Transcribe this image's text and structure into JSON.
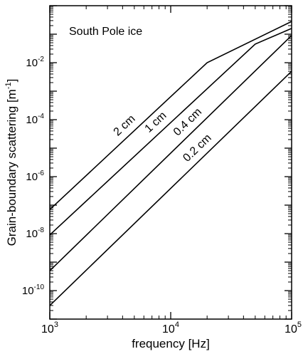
{
  "chart_data": {
    "type": "line",
    "title": "South Pole ice",
    "xlabel": "frequency [Hz]",
    "ylabel": "Grain-boundary scattering [m",
    "ylabel_sup": "-1",
    "ylabel_end": "]",
    "x_scale": "log",
    "y_scale": "log",
    "xlim": [
      1000,
      100000
    ],
    "ylim": [
      1e-11,
      1
    ],
    "x_ticks": [
      {
        "value": 1000,
        "base": "10",
        "exp": "3"
      },
      {
        "value": 10000,
        "base": "10",
        "exp": "4"
      },
      {
        "value": 100000,
        "base": "10",
        "exp": "5"
      }
    ],
    "y_ticks": [
      {
        "value": 1e-10,
        "base": "10",
        "exp": "-10"
      },
      {
        "value": 1e-08,
        "base": "10",
        "exp": "-8"
      },
      {
        "value": 1e-06,
        "base": "10",
        "exp": "-6"
      },
      {
        "value": 0.0001,
        "base": "10",
        "exp": "-4"
      },
      {
        "value": 0.01,
        "base": "10",
        "exp": "-2"
      }
    ],
    "grid": false,
    "legend": "none",
    "series": [
      {
        "name": "2 cm",
        "points": [
          [
            1000,
            7e-08
          ],
          [
            20000,
            0.01
          ],
          [
            100000,
            0.28
          ]
        ]
      },
      {
        "name": "1 cm",
        "points": [
          [
            1000,
            9e-09
          ],
          [
            50000,
            0.045
          ],
          [
            100000,
            0.16
          ]
        ]
      },
      {
        "name": "0.4 cm",
        "points": [
          [
            1000,
            5e-10
          ],
          [
            100000,
            0.09
          ]
        ]
      },
      {
        "name": "0.2 cm",
        "points": [
          [
            1000,
            3e-11
          ],
          [
            100000,
            0.005
          ]
        ]
      }
    ]
  }
}
